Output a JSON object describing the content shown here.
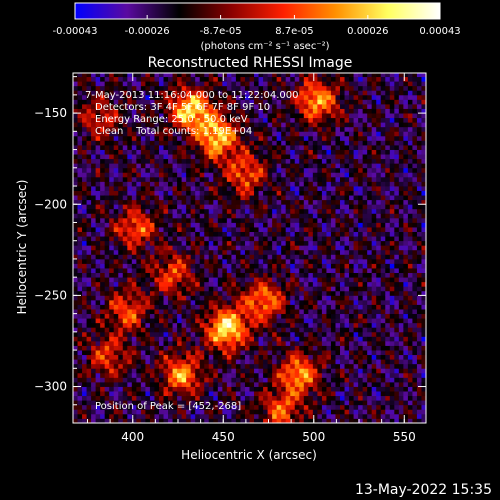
{
  "chart_data": {
    "type": "heatmap",
    "title": "Reconstructed RHESSI Image",
    "xlabel": "Heliocentric X (arcsec)",
    "ylabel": "Heliocentric Y (arcsec)",
    "xlim": [
      367,
      562
    ],
    "ylim": [
      -320,
      -128
    ],
    "x_ticks": [
      400,
      450,
      500,
      550
    ],
    "y_ticks": [
      -150,
      -200,
      -250,
      -300
    ],
    "colorbar": {
      "range": [
        -0.00043,
        0.00043
      ],
      "tick_values": [
        -0.00043,
        -0.00026,
        -8.7e-05,
        8.7e-05,
        0.00026,
        0.00043
      ],
      "tick_labels": [
        "-0.00043",
        "-0.00026",
        "-8.7e-05",
        "8.7e-05",
        "0.00026",
        "0.00043"
      ],
      "unit_label": "(photons cm⁻² s⁻¹ asec⁻²)",
      "colormap": [
        "#0000ff",
        "#5a0aa0",
        "#000000",
        "#8b0000",
        "#ff2000",
        "#ff9000",
        "#ffff60",
        "#ffffff"
      ]
    },
    "annotations": [
      "7-May-2013 11:16:04.000 to 11:22:04.000",
      "Detectors: 3F 4F 5F 6F 7F 8F 9F 10",
      "Energy Range: 25.0 - 50.0 keV",
      "Clean    Total counts: 1.19E+04"
    ],
    "peak_label": "Position of Peak = [452,-268]",
    "peak_position": [
      452,
      -268
    ],
    "flux_centers": [
      {
        "x": 452,
        "y": -268,
        "intensity": 1.0
      },
      {
        "x": 432,
        "y": -148,
        "intensity": 0.95
      },
      {
        "x": 447,
        "y": -163,
        "intensity": 0.9
      },
      {
        "x": 502,
        "y": -143,
        "intensity": 0.8
      },
      {
        "x": 462,
        "y": -183,
        "intensity": 0.6
      },
      {
        "x": 402,
        "y": -213,
        "intensity": 0.6
      },
      {
        "x": 422,
        "y": -238,
        "intensity": 0.55
      },
      {
        "x": 397,
        "y": -258,
        "intensity": 0.6
      },
      {
        "x": 427,
        "y": -293,
        "intensity": 0.75
      },
      {
        "x": 472,
        "y": -253,
        "intensity": 0.7
      },
      {
        "x": 492,
        "y": -293,
        "intensity": 0.75
      },
      {
        "x": 482,
        "y": -313,
        "intensity": 0.6
      },
      {
        "x": 387,
        "y": -283,
        "intensity": 0.5
      },
      {
        "x": 382,
        "y": -153,
        "intensity": 0.45
      }
    ]
  },
  "footer_timestamp": "13-May-2022 15:35"
}
